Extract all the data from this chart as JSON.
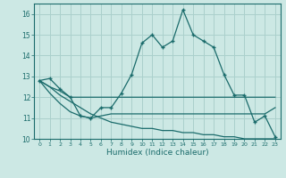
{
  "xlabel": "Humidex (Indice chaleur)",
  "x": [
    0,
    1,
    2,
    3,
    4,
    5,
    6,
    7,
    8,
    9,
    10,
    11,
    12,
    13,
    14,
    15,
    16,
    17,
    18,
    19,
    20,
    21,
    22,
    23
  ],
  "line1": [
    12.8,
    12.9,
    12.4,
    12.0,
    11.1,
    11.0,
    11.5,
    11.5,
    12.2,
    13.1,
    14.6,
    15.0,
    14.4,
    14.7,
    16.2,
    15.0,
    14.7,
    14.4,
    13.1,
    12.1,
    12.1,
    10.8,
    11.1,
    10.1
  ],
  "line2": [
    12.8,
    12.5,
    12.3,
    12.0,
    12.0,
    12.0,
    12.0,
    12.0,
    12.0,
    12.0,
    12.0,
    12.0,
    12.0,
    12.0,
    12.0,
    12.0,
    12.0,
    12.0,
    12.0,
    12.0,
    12.0,
    12.0,
    12.0,
    12.0
  ],
  "line3": [
    12.8,
    12.2,
    11.7,
    11.3,
    11.1,
    11.0,
    11.1,
    11.2,
    11.2,
    11.2,
    11.2,
    11.2,
    11.2,
    11.2,
    11.2,
    11.2,
    11.2,
    11.2,
    11.2,
    11.2,
    11.2,
    11.2,
    11.2,
    11.5
  ],
  "line4": [
    12.8,
    12.5,
    12.1,
    11.8,
    11.5,
    11.2,
    11.0,
    10.8,
    10.7,
    10.6,
    10.5,
    10.5,
    10.4,
    10.4,
    10.3,
    10.3,
    10.2,
    10.2,
    10.1,
    10.1,
    10.0,
    10.0,
    10.0,
    10.0
  ],
  "ylim": [
    10,
    16.5
  ],
  "yticks": [
    10,
    11,
    12,
    13,
    14,
    15,
    16
  ],
  "xticks": [
    0,
    1,
    2,
    3,
    4,
    5,
    6,
    7,
    8,
    9,
    10,
    11,
    12,
    13,
    14,
    15,
    16,
    17,
    18,
    19,
    20,
    21,
    22,
    23
  ],
  "line_color": "#1a6b6b",
  "bg_color": "#cce8e4",
  "grid_color": "#aad0cc"
}
